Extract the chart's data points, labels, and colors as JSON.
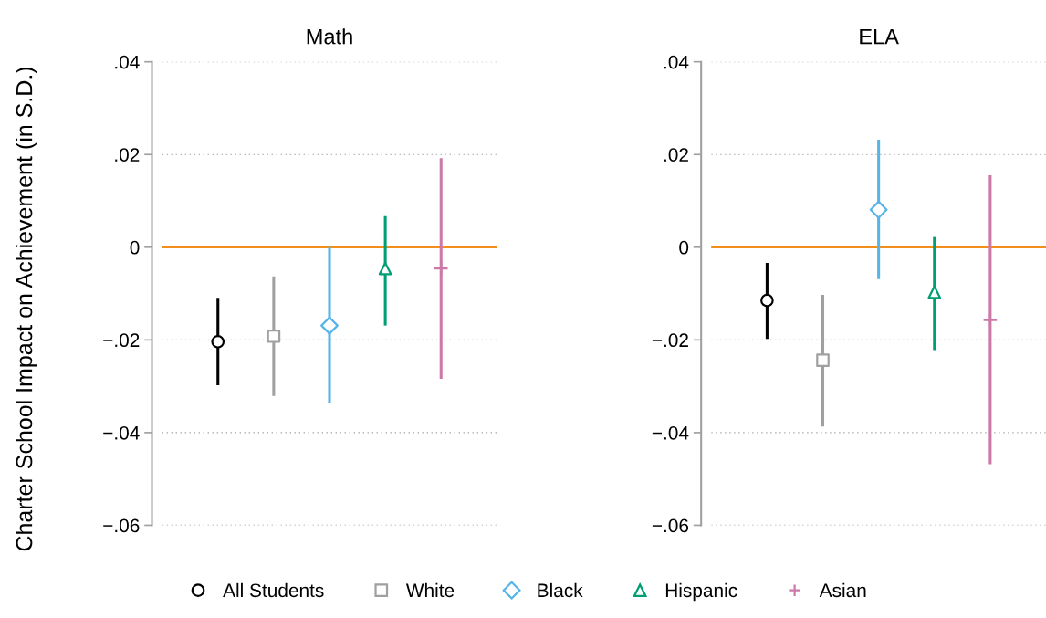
{
  "chart_data": [
    {
      "type": "scatter",
      "title": "Math",
      "ylabel": "Charter School Impact on Achievement (in S.D.)",
      "categories": [
        null,
        null,
        null,
        null,
        null
      ],
      "ylim": [
        -0.06,
        0.04
      ],
      "yticks": [
        {
          "value": 0.04,
          "label": ".04"
        },
        {
          "value": 0.02,
          "label": ".02"
        },
        {
          "value": 0,
          "label": "0"
        },
        {
          "value": -0.02,
          "label": "−.02"
        },
        {
          "value": -0.04,
          "label": "−.04"
        },
        {
          "value": -0.06,
          "label": "−.06"
        }
      ],
      "tick_labels": "y",
      "grid": "y",
      "legend": "bottom",
      "ref_lines": [
        {
          "axis": "y",
          "value": 0,
          "color": "#f28e1c"
        }
      ],
      "series": [
        {
          "name": "All Students",
          "color": "#000000",
          "marker": "circle",
          "values": [
            -0.0204,
            null,
            null,
            null,
            null
          ],
          "errors": [
            [
              -0.0298,
              -0.0109
            ],
            null,
            null,
            null,
            null
          ]
        },
        {
          "name": "White",
          "color": "#a0a0a0",
          "marker": "square",
          "values": [
            null,
            -0.0192,
            null,
            null,
            null
          ],
          "errors": [
            null,
            [
              -0.0321,
              -0.0063
            ],
            null,
            null,
            null
          ]
        },
        {
          "name": "Black",
          "color": "#56b4e9",
          "marker": "diamond",
          "values": [
            null,
            null,
            -0.0169,
            null,
            null
          ],
          "errors": [
            null,
            null,
            [
              -0.0337,
              0.0
            ],
            null,
            null
          ]
        },
        {
          "name": "Hispanic",
          "color": "#009e73",
          "marker": "triangle",
          "values": [
            null,
            null,
            null,
            -0.0046,
            null
          ],
          "errors": [
            null,
            null,
            null,
            [
              -0.0169,
              0.0067
            ],
            null
          ]
        },
        {
          "name": "Asian",
          "color": "#cc79a7",
          "marker": "cross",
          "values": [
            null,
            null,
            null,
            null,
            -0.0046
          ],
          "errors": [
            null,
            null,
            null,
            null,
            [
              -0.0284,
              0.0192
            ]
          ]
        }
      ]
    },
    {
      "type": "scatter",
      "title": "ELA",
      "categories": [
        null,
        null,
        null,
        null,
        null
      ],
      "ylim": [
        -0.06,
        0.04
      ],
      "yticks": [
        {
          "value": 0.04,
          "label": ".04"
        },
        {
          "value": 0.02,
          "label": ".02"
        },
        {
          "value": 0,
          "label": "0"
        },
        {
          "value": -0.02,
          "label": "−.02"
        },
        {
          "value": -0.04,
          "label": "−.04"
        },
        {
          "value": -0.06,
          "label": "−.06"
        }
      ],
      "tick_labels": "y",
      "grid": "y",
      "ref_lines": [
        {
          "axis": "y",
          "value": 0,
          "color": "#f28e1c"
        }
      ],
      "series": [
        {
          "color": "#000000",
          "marker": "circle",
          "values": [
            -0.0115,
            null,
            null,
            null,
            null
          ],
          "errors": [
            [
              -0.0198,
              -0.0034
            ],
            null,
            null,
            null,
            null
          ]
        },
        {
          "color": "#a0a0a0",
          "marker": "square",
          "values": [
            null,
            -0.0244,
            null,
            null,
            null
          ],
          "errors": [
            null,
            [
              -0.0387,
              -0.0103
            ],
            null,
            null,
            null
          ]
        },
        {
          "color": "#56b4e9",
          "marker": "diamond",
          "values": [
            null,
            null,
            0.0081,
            null,
            null
          ],
          "errors": [
            null,
            null,
            [
              -0.0069,
              0.0232
            ],
            null,
            null
          ]
        },
        {
          "color": "#009e73",
          "marker": "triangle",
          "values": [
            null,
            null,
            null,
            -0.0097,
            null
          ],
          "errors": [
            null,
            null,
            null,
            [
              -0.0222,
              0.0022
            ],
            null
          ]
        },
        {
          "color": "#cc79a7",
          "marker": "cross",
          "values": [
            null,
            null,
            null,
            null,
            -0.0157
          ],
          "errors": [
            null,
            null,
            null,
            null,
            [
              -0.0468,
              0.0155
            ]
          ]
        }
      ]
    }
  ]
}
